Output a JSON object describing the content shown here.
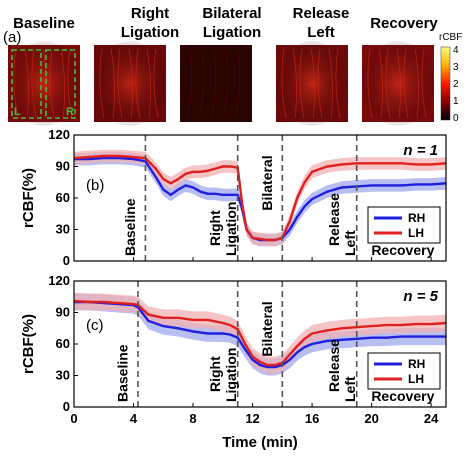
{
  "panel_a": {
    "label": "(a)",
    "images": [
      {
        "title": [
          "Baseline"
        ],
        "bg": "#7a0a0a",
        "roi_labels": [
          "L",
          "R"
        ]
      },
      {
        "title": [
          "Right",
          "Ligation"
        ],
        "bg": "#6a0808"
      },
      {
        "title": [
          "Bilateral",
          "Ligation"
        ],
        "bg": "#2a0303"
      },
      {
        "title": [
          "Release",
          "Left"
        ],
        "bg": "#6e0909"
      },
      {
        "title": [
          "Recovery"
        ],
        "bg": "#780a0a"
      }
    ],
    "colorbar": {
      "title": "rCBF",
      "ticks": [
        "4",
        "3",
        "2",
        "1",
        "0"
      ]
    }
  },
  "chart_data": [
    {
      "type": "line",
      "panel": "(b)",
      "annotation": "n = 1",
      "xlabel": "",
      "ylabel": "rCBF(%)",
      "xlim": [
        0,
        25
      ],
      "ylim": [
        0,
        120
      ],
      "yticks": [
        0,
        30,
        60,
        90,
        120
      ],
      "phase_lines_x": [
        4.8,
        11,
        14,
        19
      ],
      "phase_labels": [
        {
          "lines": [
            "Baseline"
          ],
          "x": 4.1
        },
        {
          "lines": [
            "Right",
            "Ligation"
          ],
          "x": 9.8
        },
        {
          "lines": [
            "Bilateral"
          ],
          "x": 13.3
        },
        {
          "lines": [
            "Release",
            "Left"
          ],
          "x": 17.8
        },
        {
          "lines": [
            "Recovery"
          ],
          "x": 22.1
        }
      ],
      "legend_position": "right",
      "series": [
        {
          "name": "RH",
          "color": "#1f1fe0",
          "band": "#9fa8ee",
          "x": [
            0,
            1,
            2,
            3,
            4,
            4.8,
            5.5,
            6,
            6.5,
            7,
            7.5,
            8,
            8.5,
            9,
            9.5,
            10,
            10.5,
            11,
            11.3,
            11.6,
            12,
            12.5,
            13,
            13.5,
            14,
            14.5,
            15,
            15.5,
            16,
            17,
            18,
            19,
            20,
            21,
            22,
            23,
            24,
            25
          ],
          "y": [
            97,
            97,
            98,
            98,
            97,
            95,
            80,
            68,
            63,
            68,
            72,
            70,
            66,
            64,
            64,
            63,
            63,
            63,
            50,
            30,
            22,
            20,
            20,
            20,
            22,
            30,
            42,
            52,
            59,
            66,
            70,
            71,
            72,
            72,
            72,
            73,
            73,
            74
          ],
          "err": 6
        },
        {
          "name": "LH",
          "color": "#e01f1f",
          "band": "#f2b0b0",
          "x": [
            0,
            1,
            2,
            3,
            4,
            4.8,
            5.5,
            6,
            6.5,
            7,
            7.5,
            8,
            8.5,
            9,
            9.5,
            10,
            10.5,
            11,
            11.3,
            11.6,
            12,
            12.5,
            13,
            13.5,
            14,
            14.5,
            15,
            15.5,
            16,
            17,
            18,
            19,
            20,
            21,
            22,
            23,
            24,
            25
          ],
          "y": [
            98,
            99,
            100,
            100,
            99,
            98,
            88,
            78,
            74,
            78,
            83,
            85,
            85,
            86,
            88,
            90,
            90,
            89,
            55,
            30,
            22,
            21,
            20,
            20,
            22,
            38,
            60,
            75,
            85,
            90,
            92,
            93,
            93,
            93,
            93,
            92,
            92,
            93
          ],
          "err": 6
        }
      ]
    },
    {
      "type": "line",
      "panel": "(c)",
      "annotation": "n = 5",
      "xlabel": "Time (min)",
      "ylabel": "rCBF(%)",
      "xlim": [
        0,
        25
      ],
      "ylim": [
        0,
        120
      ],
      "yticks": [
        0,
        30,
        60,
        90,
        120
      ],
      "xticks": [
        0,
        4,
        8,
        12,
        16,
        20,
        24
      ],
      "phase_lines_x": [
        4.3,
        11,
        14,
        19
      ],
      "phase_labels": [
        {
          "lines": [
            "Baseline"
          ],
          "x": 3.6
        },
        {
          "lines": [
            "Right",
            "Ligation"
          ],
          "x": 9.8
        },
        {
          "lines": [
            "Bilateral"
          ],
          "x": 13.3
        },
        {
          "lines": [
            "Release",
            "Left"
          ],
          "x": 17.8
        },
        {
          "lines": [
            "Recovery"
          ],
          "x": 22.1
        }
      ],
      "legend_position": "right",
      "series": [
        {
          "name": "RH",
          "color": "#1f1fe0",
          "band": "#9fa8ee",
          "x": [
            0,
            1,
            2,
            3,
            4,
            4.3,
            5,
            6,
            7,
            8,
            9,
            10,
            10.5,
            11,
            11.5,
            12,
            12.5,
            13,
            13.5,
            14,
            14.5,
            15,
            15.5,
            16,
            17,
            18,
            19,
            20,
            21,
            22,
            23,
            24,
            25
          ],
          "y": [
            100,
            100,
            99,
            98,
            97,
            95,
            82,
            77,
            75,
            72,
            70,
            70,
            69,
            66,
            55,
            45,
            40,
            38,
            38,
            40,
            45,
            52,
            57,
            60,
            63,
            64,
            65,
            66,
            66,
            67,
            67,
            67,
            67
          ],
          "err": 8
        },
        {
          "name": "LH",
          "color": "#e01f1f",
          "band": "#f2b0b0",
          "x": [
            0,
            1,
            2,
            3,
            4,
            4.3,
            5,
            6,
            7,
            8,
            9,
            10,
            10.5,
            11,
            11.5,
            12,
            12.5,
            13,
            13.5,
            14,
            14.5,
            15,
            15.5,
            16,
            17,
            18,
            19,
            20,
            21,
            22,
            23,
            24,
            25
          ],
          "y": [
            101,
            100,
            100,
            99,
            98,
            97,
            88,
            85,
            85,
            83,
            83,
            80,
            78,
            74,
            60,
            48,
            43,
            40,
            40,
            42,
            50,
            58,
            65,
            70,
            73,
            75,
            76,
            77,
            78,
            78,
            79,
            79,
            80
          ],
          "err": 8
        }
      ]
    }
  ]
}
